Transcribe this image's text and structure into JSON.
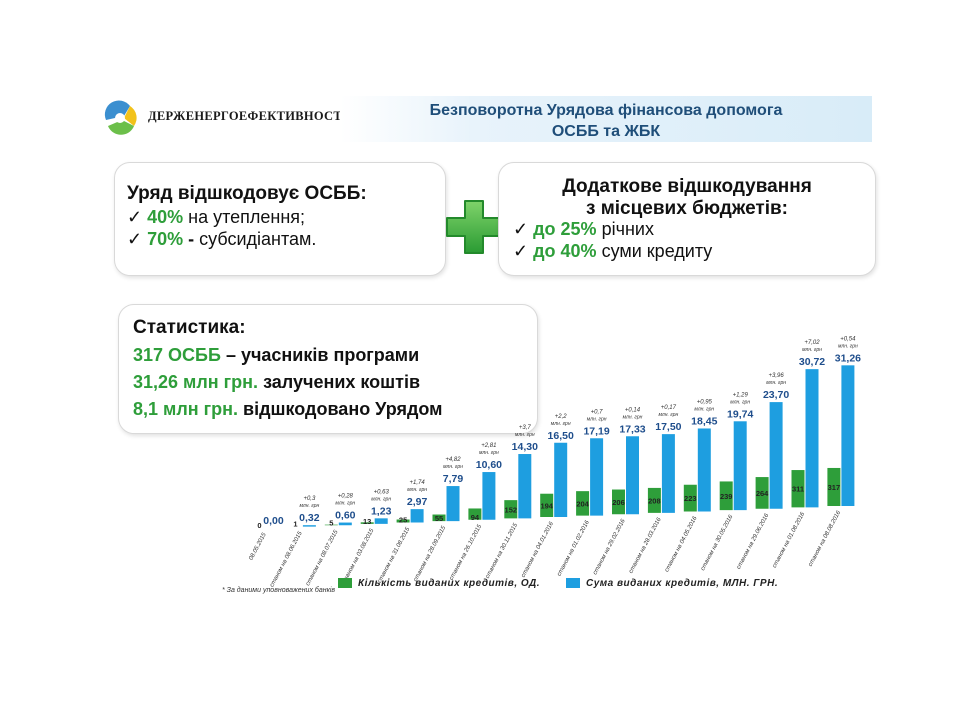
{
  "header": {
    "logo_text": "ДЕРЖЕНЕРГОЕФЕКТИВНОСТІ",
    "title_line1": "Безповоротна Урядова фінансова допомога",
    "title_line2": "ОСББ та ЖБК"
  },
  "left_box": {
    "heading": "Уряд відшкодовує ОСББ:",
    "items": [
      {
        "check": "✓",
        "value": "40%",
        "text": "на утеплення;"
      },
      {
        "check": "✓",
        "value": "70%",
        "sep": "-",
        "text": "субсидіантам."
      }
    ]
  },
  "right_box": {
    "heading_line1": "Додаткове відшкодування",
    "heading_line2": "з місцевих бюджетів:",
    "items": [
      {
        "check": "✓",
        "value": "до 25%",
        "text": "річних"
      },
      {
        "check": "✓",
        "value": "до 40%",
        "text": "суми кредиту"
      }
    ]
  },
  "stats": {
    "heading": "Статистика:",
    "lines": [
      {
        "value": "317 ОСББ",
        "text": "– учасників програми"
      },
      {
        "value": "31,26 млн грн.",
        "text": "залучених коштів"
      },
      {
        "value": "8,1 млн грн.",
        "text": "відшкодовано Урядом"
      }
    ]
  },
  "colors": {
    "green": "#2e9e3a",
    "blue": "#1e9ee0",
    "title": "#1f4e79",
    "plus": "#3cb54a"
  },
  "chart_data": {
    "type": "bar",
    "categories": [
      "08.05.2015",
      "станом на 08.06.2015",
      "станом на 08.07.2015",
      "станом на 03.08.2015",
      "станом на 31.08.2015",
      "станом на 28.09.2015",
      "станом на 26.10.2015",
      "станом на 30.11.2015",
      "станом на 04.01.2016",
      "станом на 01.02.2016",
      "станом на 29.02.2016",
      "станом на 28.03.2016",
      "станом на 04.05.2016",
      "станом на 30.05.2016",
      "станом на 29.06.2016",
      "станом на 01.08.2016",
      "станом на 08.08.2016"
    ],
    "series": [
      {
        "name": "Кількість виданих кредитів, ОД.",
        "values": [
          0,
          1,
          5,
          13,
          25,
          55,
          94,
          152,
          194,
          204,
          206,
          208,
          223,
          239,
          264,
          311,
          317
        ]
      },
      {
        "name": "Сума виданих кредитів, МЛН. ГРН.",
        "values": [
          0.0,
          0.32,
          0.6,
          1.23,
          2.97,
          7.79,
          10.6,
          14.3,
          16.5,
          17.19,
          17.33,
          17.5,
          18.45,
          19.74,
          23.7,
          30.72,
          31.26
        ]
      }
    ],
    "count_labels": [
      "0",
      "1",
      "5",
      "13",
      "25",
      "55",
      "94",
      "152",
      "194",
      "204",
      "206",
      "208",
      "223",
      "239",
      "264",
      "311",
      "317"
    ],
    "sum_labels": [
      "0,00",
      "0,32",
      "0,60",
      "1,23",
      "2,97",
      "7,79",
      "10,60",
      "14,30",
      "16,50",
      "17,19",
      "17,33",
      "17,50",
      "18,45",
      "19,74",
      "23,70",
      "30,72",
      "31,26"
    ],
    "increments": [
      "",
      "+0,3",
      "+0,28",
      "+0,63",
      "+1,74",
      "+4,82",
      "+2,81",
      "+3,7",
      "+2,2",
      "+0,7",
      "+0,14",
      "+0,17",
      "+0,95",
      "+1,29",
      "+3,96",
      "+7,02",
      "+0,54"
    ],
    "increment_unit": "млн. грн",
    "legend": [
      "Кількість виданих кредитів, ОД.",
      "Сума виданих кредитів, МЛН. ГРН."
    ],
    "footnote": "* За даними уповноважених банків"
  }
}
